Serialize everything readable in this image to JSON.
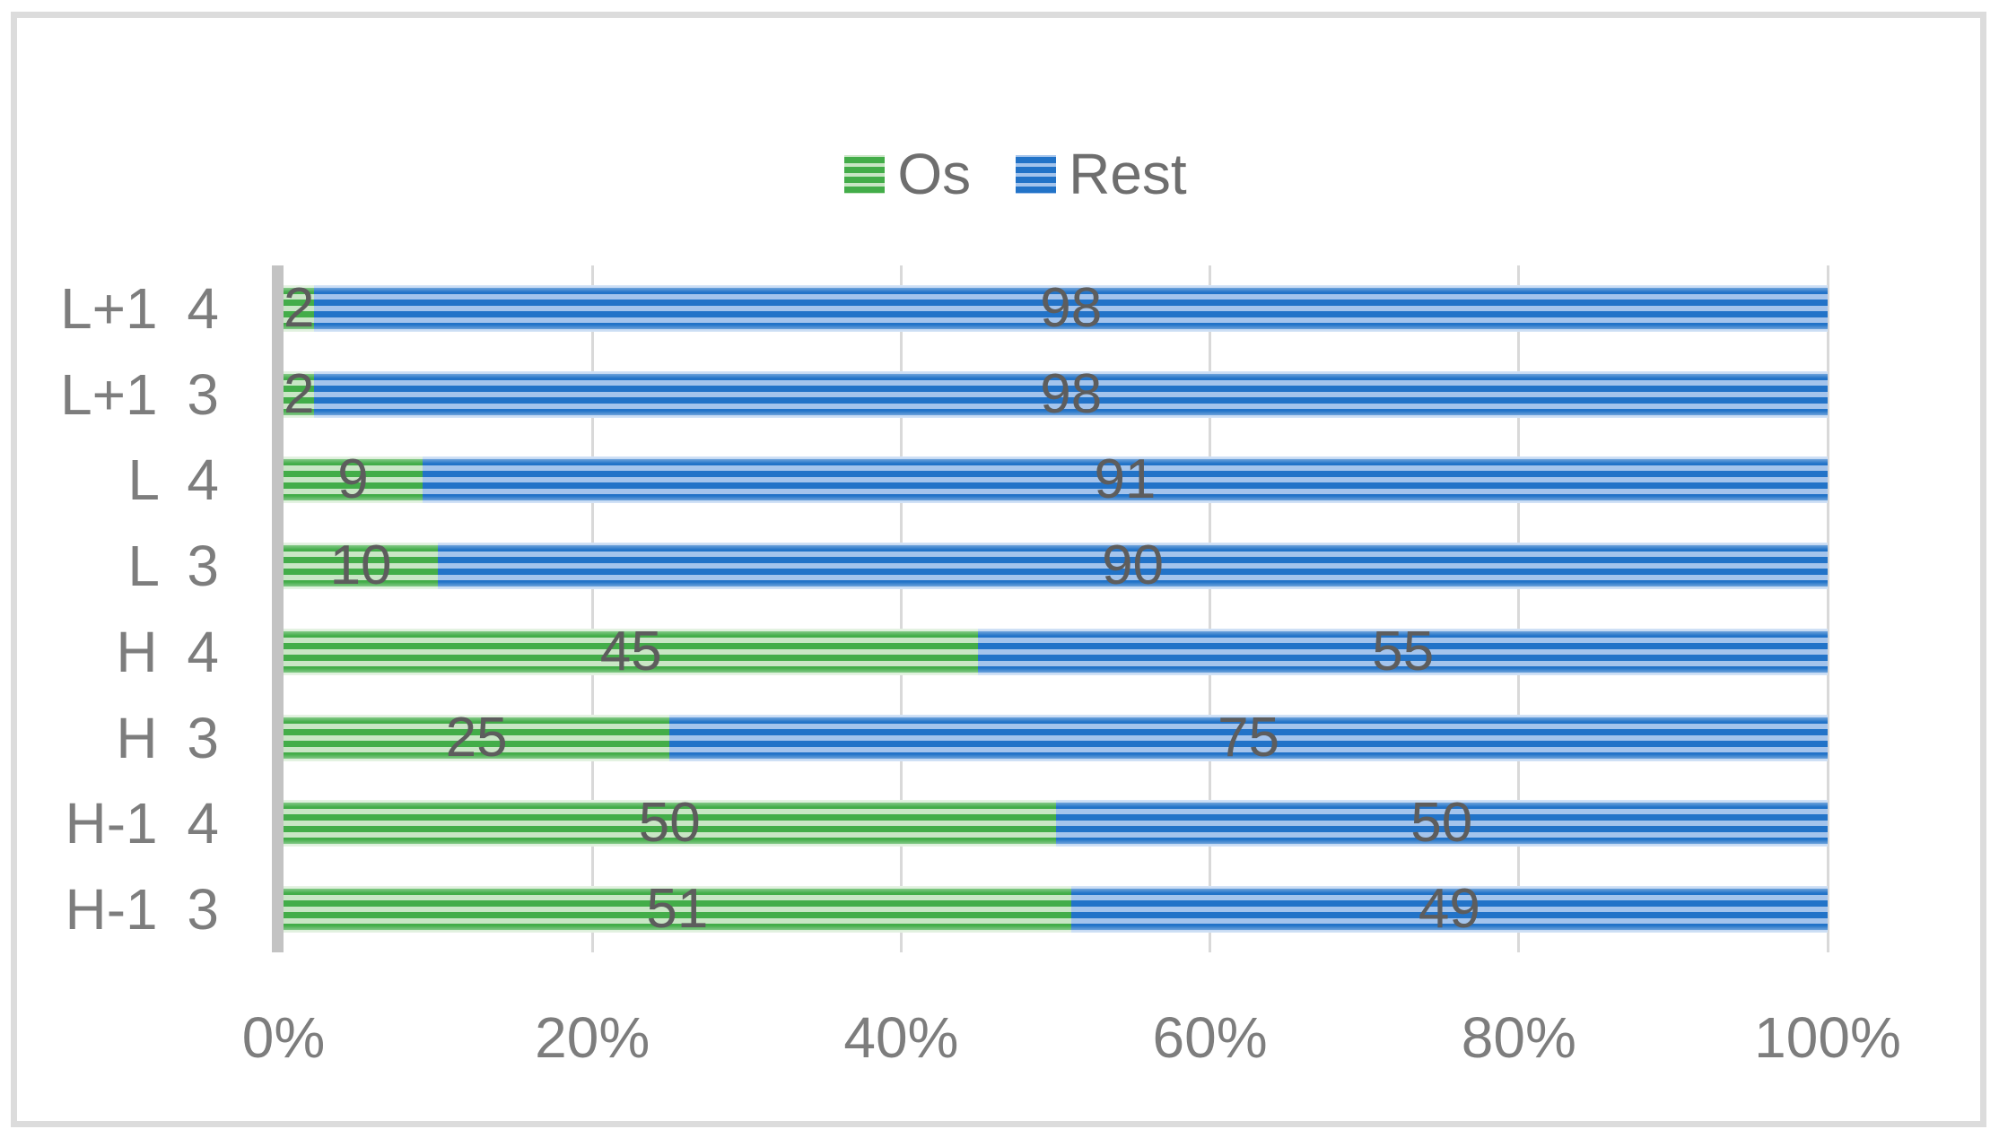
{
  "figure": {
    "background": "#ffffff",
    "border_color": "#dcdcdc"
  },
  "colors": {
    "os_dark": "#43ad49",
    "os_light": "#c9e6c5",
    "rest_dark": "#2273c8",
    "rest_light": "#a4c4ec",
    "gridline": "#d9d9d9",
    "axis_line": "#c3c3c3",
    "tick_text": "#7d7d7d",
    "category_text": "#7d7d7d",
    "data_label_text": "#5d5d5d",
    "legend_text": "#6e6e6e"
  },
  "chart_data": {
    "type": "bar",
    "orientation": "horizontal",
    "stacked": true,
    "stack_total": 100,
    "categories": [
      "L+1 4",
      "L+1 3",
      "L 4",
      "L 3",
      "H 4",
      "H 3",
      "H-1 4",
      "H-1 3"
    ],
    "series": [
      {
        "name": "Os",
        "values": [
          2,
          2,
          9,
          10,
          45,
          25,
          50,
          51
        ]
      },
      {
        "name": "Rest",
        "values": [
          98,
          98,
          91,
          90,
          55,
          75,
          50,
          49
        ]
      }
    ],
    "data_labels": true,
    "x_ticks": [
      "0%",
      "20%",
      "40%",
      "60%",
      "80%",
      "100%"
    ],
    "xlim": [
      0,
      100
    ],
    "grid": "vertical",
    "legend_position": "top",
    "title": ""
  }
}
